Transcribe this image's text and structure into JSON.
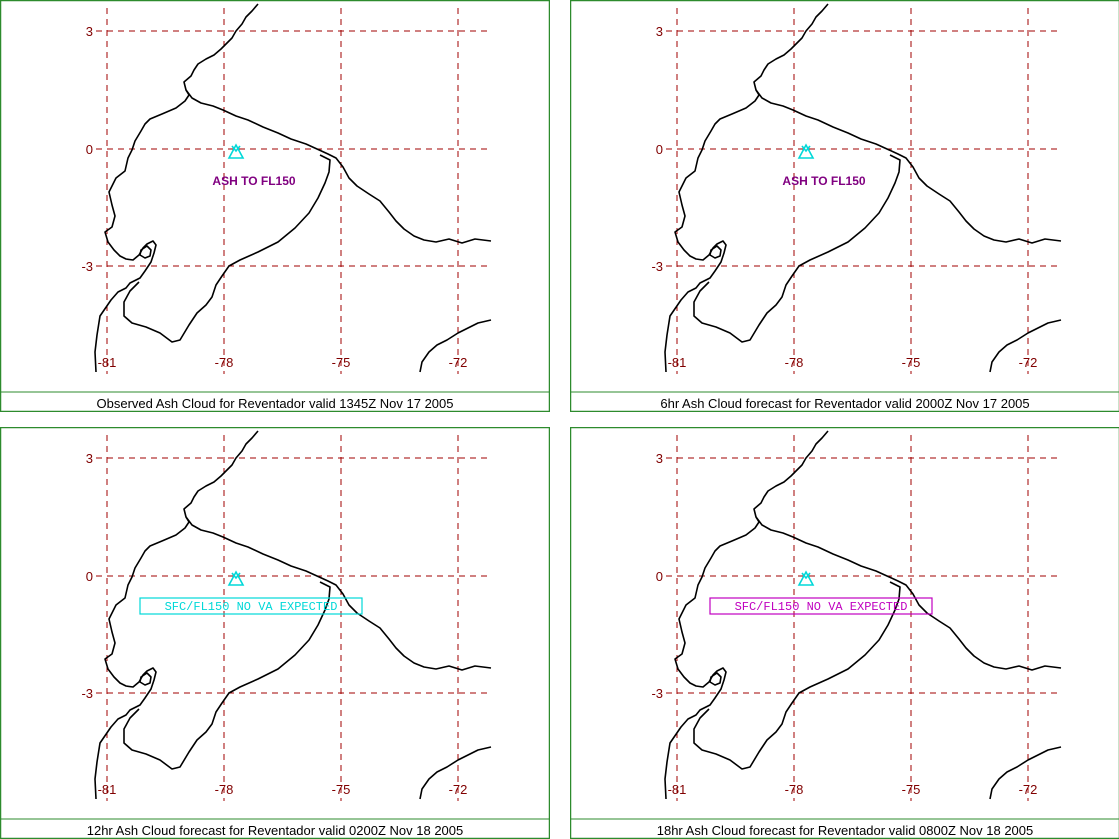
{
  "colors": {
    "frame": "#2d8b2d",
    "grid": "#a00000",
    "tick_label": "#800000",
    "coast": "#000000",
    "volcano": "#00d8d8",
    "ash_label": "#800080"
  },
  "axes": {
    "lat_ticks": [
      "3",
      "0",
      "-3"
    ],
    "lon_ticks": [
      "-81",
      "-78",
      "-75",
      "-72"
    ]
  },
  "panels": [
    {
      "caption": "Observed Ash Cloud for Reventador valid 1345Z Nov 17 2005",
      "label_type": "plain",
      "label_text": "ASH TO FL150",
      "label_color": "#800080"
    },
    {
      "caption": "6hr Ash Cloud forecast for Reventador valid 2000Z Nov 17 2005",
      "label_type": "plain",
      "label_text": "ASH TO FL150",
      "label_color": "#800080"
    },
    {
      "caption": "12hr Ash Cloud forecast for Reventador valid 0200Z Nov 18 2005",
      "label_type": "box",
      "label_text": "SFC/FL150 NO VA EXPECTED",
      "label_color": "#00d8d8"
    },
    {
      "caption": "18hr Ash Cloud forecast for Reventador valid 0800Z Nov 18 2005",
      "label_type": "box",
      "label_text": "SFC/FL150 NO VA EXPECTED",
      "label_color": "#c000c0"
    }
  ]
}
